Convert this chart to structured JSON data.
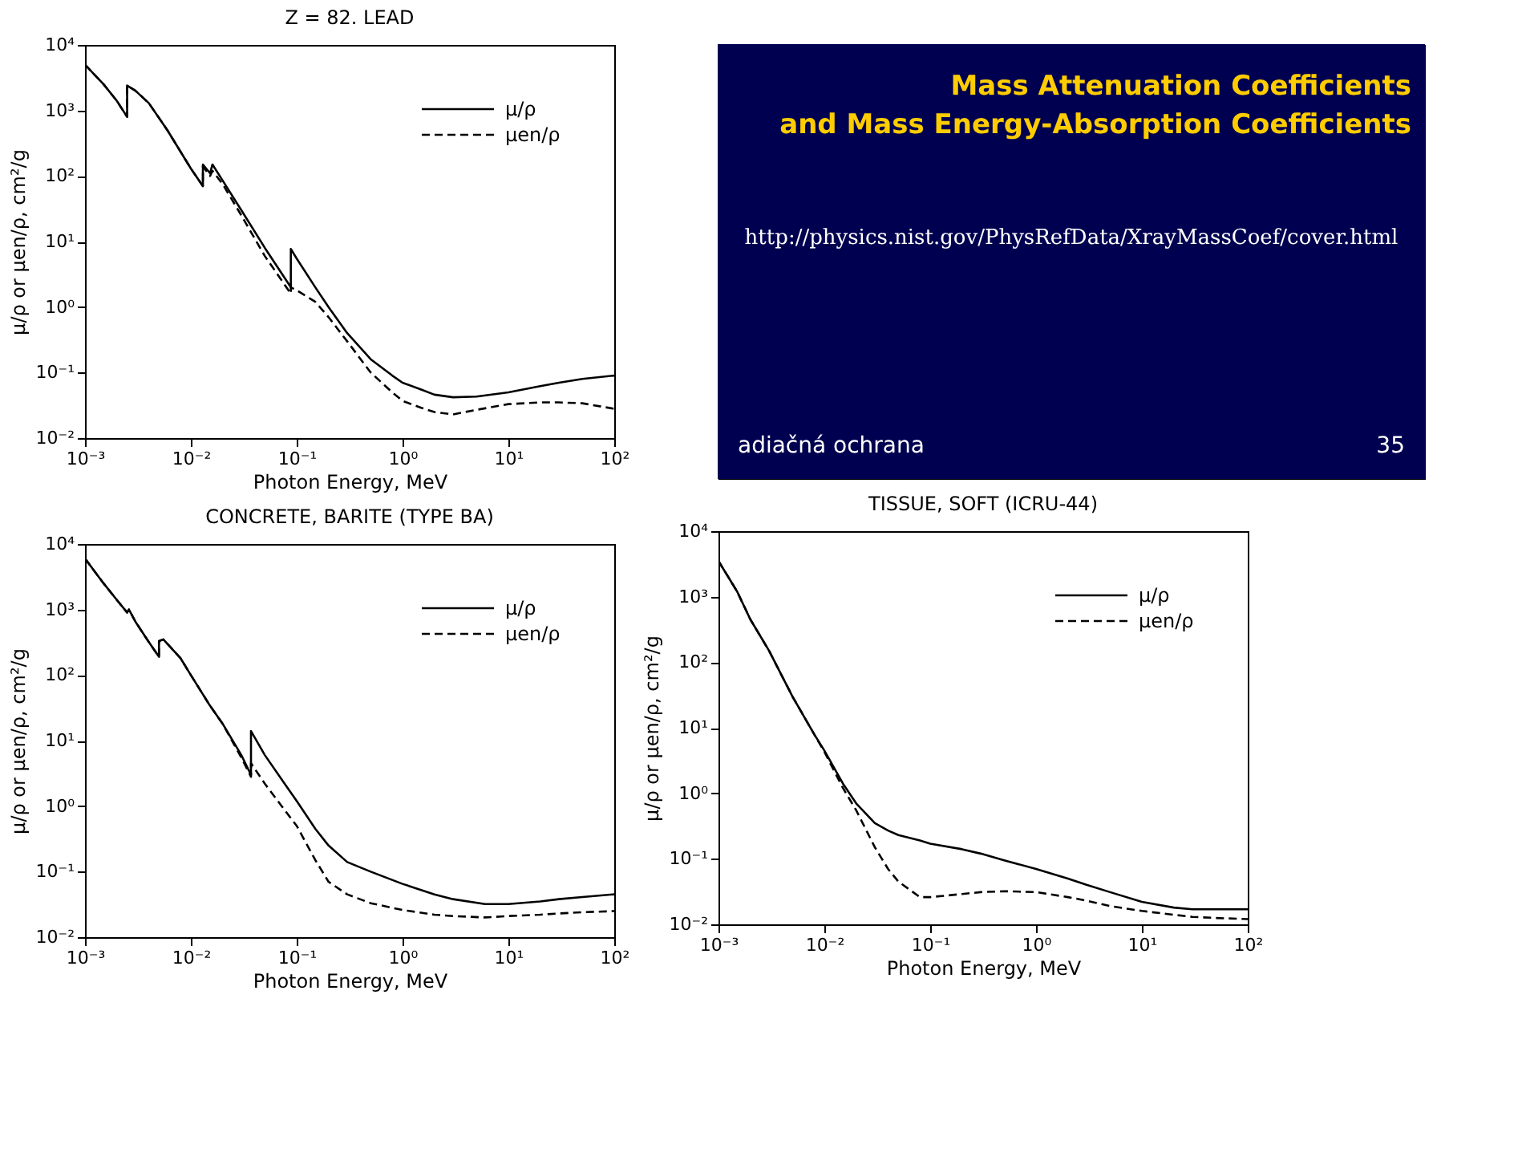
{
  "chart_data": [
    {
      "type": "line",
      "title": "Z = 82.  LEAD",
      "xlabel": "Photon Energy, MeV",
      "ylabel": "μ/ρ or μen/ρ, cm²/g",
      "log": "xy",
      "legend": "top right",
      "grid": false,
      "marker": "none",
      "xlim": [
        0.001,
        100
      ],
      "ylim": [
        0.01,
        10000
      ],
      "xticks": [
        {
          "value": 0.001,
          "label": "10⁻³"
        },
        {
          "value": 0.01,
          "label": "10⁻²"
        },
        {
          "value": 0.1,
          "label": "10⁻¹"
        },
        {
          "value": 1,
          "label": "10⁰"
        },
        {
          "value": 10,
          "label": "10¹"
        },
        {
          "value": 100,
          "label": "10²"
        }
      ],
      "yticks": [
        {
          "value": 0.01,
          "label": "10⁻²"
        },
        {
          "value": 0.1,
          "label": "10⁻¹"
        },
        {
          "value": 1,
          "label": "10⁰"
        },
        {
          "value": 10,
          "label": "10¹"
        },
        {
          "value": 100,
          "label": "10²"
        },
        {
          "value": 1000,
          "label": "10³"
        },
        {
          "value": 10000,
          "label": "10⁴"
        }
      ],
      "series": [
        {
          "name": "μ/ρ",
          "color": "#000000",
          "line_style": "solid",
          "x": [
            0.001,
            0.0015,
            0.002,
            0.0025,
            0.0025,
            0.003,
            0.004,
            0.006,
            0.01,
            0.013,
            0.013,
            0.0152,
            0.016,
            0.02,
            0.03,
            0.05,
            0.088,
            0.088,
            0.1,
            0.15,
            0.2,
            0.3,
            0.5,
            0.8,
            1,
            1.5,
            2,
            3,
            5,
            10,
            20,
            30,
            50,
            100
          ],
          "values": [
            5000,
            2500,
            1400,
            800,
            2400,
            2000,
            1300,
            500,
            130,
            70,
            150,
            110,
            150,
            85,
            30,
            8,
            2,
            7.7,
            5.5,
            2,
            1,
            0.4,
            0.16,
            0.09,
            0.07,
            0.055,
            0.046,
            0.042,
            0.043,
            0.05,
            0.062,
            0.07,
            0.08,
            0.09
          ]
        },
        {
          "name": "μen/ρ",
          "color": "#000000",
          "line_style": "dashed",
          "x": [
            0.001,
            0.0015,
            0.002,
            0.0025,
            0.0025,
            0.003,
            0.004,
            0.006,
            0.01,
            0.013,
            0.013,
            0.0152,
            0.016,
            0.02,
            0.03,
            0.05,
            0.088,
            0.088,
            0.1,
            0.15,
            0.2,
            0.3,
            0.5,
            0.8,
            1,
            1.5,
            2,
            3,
            5,
            10,
            20,
            30,
            50,
            100
          ],
          "values": [
            5000,
            2500,
            1400,
            800,
            2400,
            2000,
            1300,
            500,
            130,
            70,
            140,
            100,
            120,
            75,
            25,
            6,
            1.6,
            2,
            1.8,
            1.2,
            0.7,
            0.3,
            0.1,
            0.05,
            0.037,
            0.029,
            0.025,
            0.023,
            0.027,
            0.033,
            0.035,
            0.035,
            0.034,
            0.028
          ]
        }
      ]
    },
    {
      "type": "line",
      "title": "CONCRETE, BARITE (TYPE BA)",
      "xlabel": "Photon Energy, MeV",
      "ylabel": "μ/ρ or μen/ρ, cm²/g",
      "log": "xy",
      "legend": "top right",
      "grid": false,
      "marker": "none",
      "xlim": [
        0.001,
        100
      ],
      "ylim": [
        0.01,
        10000
      ],
      "xticks": [
        {
          "value": 0.001,
          "label": "10⁻³"
        },
        {
          "value": 0.01,
          "label": "10⁻²"
        },
        {
          "value": 0.1,
          "label": "10⁻¹"
        },
        {
          "value": 1,
          "label": "10⁰"
        },
        {
          "value": 10,
          "label": "10¹"
        },
        {
          "value": 100,
          "label": "10²"
        }
      ],
      "yticks": [
        {
          "value": 0.01,
          "label": "10⁻²"
        },
        {
          "value": 0.1,
          "label": "10⁻¹"
        },
        {
          "value": 1,
          "label": "10⁰"
        },
        {
          "value": 10,
          "label": "10¹"
        },
        {
          "value": 100,
          "label": "10²"
        },
        {
          "value": 1000,
          "label": "10³"
        },
        {
          "value": 10000,
          "label": "10⁴"
        }
      ],
      "series": [
        {
          "name": "μ/ρ",
          "color": "#000000",
          "line_style": "solid",
          "x": [
            0.001,
            0.0015,
            0.002,
            0.0025,
            0.0026,
            0.003,
            0.004,
            0.005,
            0.005,
            0.0055,
            0.006,
            0.008,
            0.01,
            0.015,
            0.02,
            0.03,
            0.037,
            0.037,
            0.05,
            0.08,
            0.1,
            0.15,
            0.2,
            0.3,
            0.5,
            1,
            2,
            3,
            6,
            10,
            20,
            30,
            50,
            100
          ],
          "values": [
            6000,
            2500,
            1400,
            900,
            1000,
            650,
            320,
            190,
            330,
            350,
            300,
            180,
            100,
            35,
            18,
            6,
            3,
            14,
            6,
            2,
            1.2,
            0.45,
            0.25,
            0.14,
            0.1,
            0.065,
            0.045,
            0.038,
            0.032,
            0.032,
            0.035,
            0.038,
            0.041,
            0.045
          ]
        },
        {
          "name": "μen/ρ",
          "color": "#000000",
          "line_style": "dashed",
          "x": [
            0.001,
            0.0015,
            0.002,
            0.0025,
            0.0026,
            0.003,
            0.004,
            0.005,
            0.005,
            0.0055,
            0.006,
            0.008,
            0.01,
            0.015,
            0.02,
            0.03,
            0.037,
            0.037,
            0.05,
            0.08,
            0.1,
            0.15,
            0.2,
            0.3,
            0.5,
            1,
            2,
            3,
            6,
            10,
            20,
            30,
            50,
            100
          ],
          "values": [
            6000,
            2500,
            1400,
            900,
            1000,
            650,
            320,
            190,
            330,
            350,
            300,
            180,
            100,
            35,
            18,
            5.5,
            2.8,
            4.5,
            2.2,
            0.8,
            0.5,
            0.15,
            0.07,
            0.045,
            0.033,
            0.026,
            0.022,
            0.021,
            0.02,
            0.021,
            0.022,
            0.023,
            0.024,
            0.025
          ]
        }
      ]
    },
    {
      "type": "other",
      "title": "Mass Attenuation Coefficients and Mass Energy-Absorption Coefficients",
      "annotations": [
        "http://physics.nist.gov/PhysRefData/XrayMassCoef/cover.html",
        "adiačná ochrana",
        "35"
      ]
    },
    {
      "type": "line",
      "title": "TISSUE, SOFT (ICRU-44)",
      "xlabel": "Photon Energy, MeV",
      "ylabel": "μ/ρ or μen/ρ, cm²/g",
      "log": "xy",
      "legend": "top right",
      "grid": false,
      "marker": "none",
      "xlim": [
        0.001,
        100
      ],
      "ylim": [
        0.01,
        10000
      ],
      "xticks": [
        {
          "value": 0.001,
          "label": "10⁻³"
        },
        {
          "value": 0.01,
          "label": "10⁻²"
        },
        {
          "value": 0.1,
          "label": "10⁻¹"
        },
        {
          "value": 1,
          "label": "10⁰"
        },
        {
          "value": 10,
          "label": "10¹"
        },
        {
          "value": 100,
          "label": "10²"
        }
      ],
      "yticks": [
        {
          "value": 0.01,
          "label": "10⁻²"
        },
        {
          "value": 0.1,
          "label": "10⁻¹"
        },
        {
          "value": 1,
          "label": "10⁰"
        },
        {
          "value": 10,
          "label": "10¹"
        },
        {
          "value": 100,
          "label": "10²"
        },
        {
          "value": 1000,
          "label": "10³"
        },
        {
          "value": 10000,
          "label": "10⁴"
        }
      ],
      "series": [
        {
          "name": "μ/ρ",
          "color": "#000000",
          "line_style": "solid",
          "x": [
            0.001,
            0.0015,
            0.002,
            0.003,
            0.005,
            0.008,
            0.01,
            0.015,
            0.02,
            0.03,
            0.04,
            0.05,
            0.08,
            0.1,
            0.2,
            0.3,
            0.5,
            1,
            2,
            3,
            5,
            10,
            20,
            30,
            50,
            100
          ],
          "values": [
            3500,
            1200,
            450,
            150,
            30,
            8,
            4.5,
            1.4,
            0.7,
            0.35,
            0.27,
            0.23,
            0.19,
            0.17,
            0.14,
            0.12,
            0.095,
            0.07,
            0.05,
            0.04,
            0.031,
            0.022,
            0.018,
            0.017,
            0.017,
            0.017
          ]
        },
        {
          "name": "μen/ρ",
          "color": "#000000",
          "line_style": "dashed",
          "x": [
            0.001,
            0.0015,
            0.002,
            0.003,
            0.005,
            0.008,
            0.01,
            0.015,
            0.02,
            0.03,
            0.04,
            0.05,
            0.08,
            0.1,
            0.2,
            0.3,
            0.5,
            1,
            2,
            3,
            5,
            10,
            20,
            30,
            50,
            100
          ],
          "values": [
            3500,
            1200,
            450,
            150,
            30,
            8,
            4.3,
            1.2,
            0.55,
            0.15,
            0.07,
            0.045,
            0.026,
            0.026,
            0.029,
            0.031,
            0.032,
            0.031,
            0.026,
            0.023,
            0.019,
            0.016,
            0.014,
            0.013,
            0.0125,
            0.012
          ]
        }
      ]
    }
  ]
}
